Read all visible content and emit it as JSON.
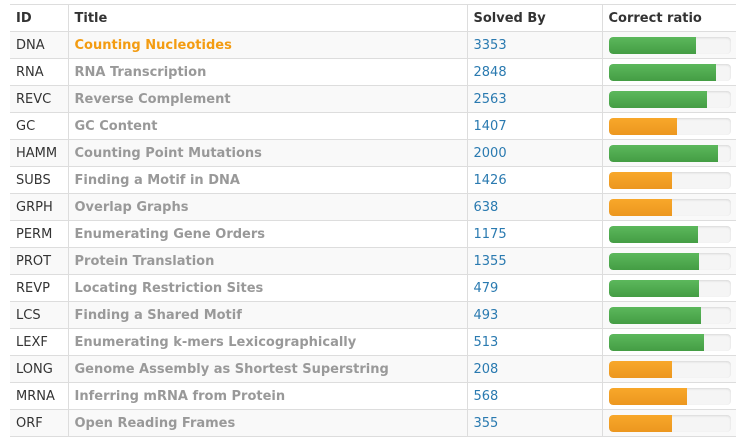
{
  "columns": {
    "id": "ID",
    "title": "Title",
    "solved_by": "Solved By",
    "ratio": "Correct ratio"
  },
  "colors": {
    "green": "#5cb85c",
    "orange": "#f0ad4e",
    "active_title": "#f39c12",
    "link": "#2a7ab0"
  },
  "rows": [
    {
      "id": "DNA",
      "title": "Counting Nucleotides",
      "solved": "3353",
      "ratio": 0.72,
      "color": "green",
      "active": true
    },
    {
      "id": "RNA",
      "title": "RNA Transcription",
      "solved": "2848",
      "ratio": 0.88,
      "color": "green",
      "active": false
    },
    {
      "id": "REVC",
      "title": "Reverse Complement",
      "solved": "2563",
      "ratio": 0.81,
      "color": "green",
      "active": false
    },
    {
      "id": "GC",
      "title": "GC Content",
      "solved": "1407",
      "ratio": 0.56,
      "color": "orange",
      "active": false
    },
    {
      "id": "HAMM",
      "title": "Counting Point Mutations",
      "solved": "2000",
      "ratio": 0.9,
      "color": "green",
      "active": false
    },
    {
      "id": "SUBS",
      "title": "Finding a Motif in DNA",
      "solved": "1426",
      "ratio": 0.52,
      "color": "orange",
      "active": false
    },
    {
      "id": "GRPH",
      "title": "Overlap Graphs",
      "solved": "638",
      "ratio": 0.52,
      "color": "orange",
      "active": false
    },
    {
      "id": "PERM",
      "title": "Enumerating Gene Orders",
      "solved": "1175",
      "ratio": 0.73,
      "color": "green",
      "active": false
    },
    {
      "id": "PROT",
      "title": "Protein Translation",
      "solved": "1355",
      "ratio": 0.74,
      "color": "green",
      "active": false
    },
    {
      "id": "REVP",
      "title": "Locating Restriction Sites",
      "solved": "479",
      "ratio": 0.74,
      "color": "green",
      "active": false
    },
    {
      "id": "LCS",
      "title": "Finding a Shared Motif",
      "solved": "493",
      "ratio": 0.76,
      "color": "green",
      "active": false
    },
    {
      "id": "LEXF",
      "title": "Enumerating k-mers Lexicographically",
      "solved": "513",
      "ratio": 0.78,
      "color": "green",
      "active": false
    },
    {
      "id": "LONG",
      "title": "Genome Assembly as Shortest Superstring",
      "solved": "208",
      "ratio": 0.52,
      "color": "orange",
      "active": false
    },
    {
      "id": "MRNA",
      "title": "Inferring mRNA from Protein",
      "solved": "568",
      "ratio": 0.64,
      "color": "orange",
      "active": false
    },
    {
      "id": "ORF",
      "title": "Open Reading Frames",
      "solved": "355",
      "ratio": 0.52,
      "color": "orange",
      "active": false
    }
  ]
}
